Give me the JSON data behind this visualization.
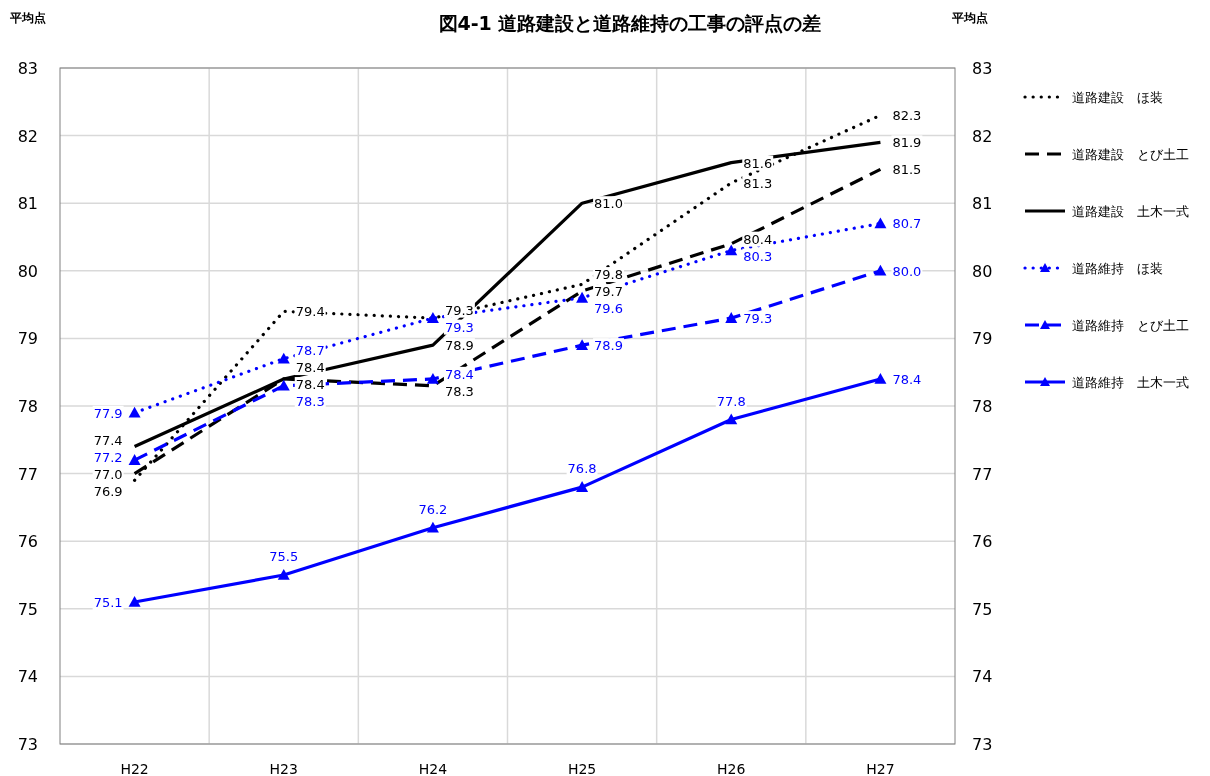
{
  "chart_data": {
    "type": "line",
    "title": "図4-1  道路建設と道路維持の工事の評点の差",
    "ylabel": "平均点",
    "y2label": "平均点",
    "categories": [
      "H22",
      "H23",
      "H24",
      "H25",
      "H26",
      "H27"
    ],
    "ylim": [
      73,
      83
    ],
    "yticks": [
      73,
      74,
      75,
      76,
      77,
      78,
      79,
      80,
      81,
      82,
      83
    ],
    "y2lim": [
      73,
      83
    ],
    "y2ticks": [
      73,
      74,
      75,
      76,
      77,
      78,
      79,
      80,
      81,
      82,
      83
    ],
    "grid": true,
    "legend": "right",
    "data_labels": true,
    "series": [
      {
        "name": "道路建設　ほ装",
        "color": "#000000",
        "line_style": "dotted",
        "marker": "none",
        "values": [
          76.9,
          79.4,
          79.3,
          79.8,
          81.3,
          82.3
        ],
        "value_labels": [
          "76.9",
          "79.4",
          "79.3",
          "79.8",
          "81.3",
          "82.3"
        ]
      },
      {
        "name": "道路建設　とび土工",
        "color": "#000000",
        "line_style": "dashed",
        "marker": "none",
        "values": [
          77.0,
          78.4,
          78.3,
          79.7,
          80.4,
          81.5
        ],
        "value_labels": [
          "77.0",
          "78.4",
          "78.3",
          "79.7",
          "80.4",
          "81.5"
        ]
      },
      {
        "name": "道路建設　土木一式",
        "color": "#000000",
        "line_style": "solid",
        "marker": "none",
        "values": [
          77.4,
          78.4,
          78.9,
          81.0,
          81.6,
          81.9
        ],
        "value_labels": [
          "77.4",
          "78.4",
          "78.9",
          "81.0",
          "81.6",
          "81.9"
        ]
      },
      {
        "name": "道路維持　ほ装",
        "color": "#0000ff",
        "line_style": "dotted",
        "marker": "triangle",
        "values": [
          77.9,
          78.7,
          79.3,
          79.6,
          80.3,
          80.7
        ],
        "value_labels": [
          "77.9",
          "78.7",
          "79.3",
          "79.6",
          "80.3",
          "80.7"
        ]
      },
      {
        "name": "道路維持　とび土工",
        "color": "#0000ff",
        "line_style": "dashed",
        "marker": "triangle",
        "values": [
          77.2,
          78.3,
          78.4,
          78.9,
          79.3,
          80.0
        ],
        "value_labels": [
          "77.2",
          "78.3",
          "78.4",
          "78.9",
          "79.3",
          "80.0"
        ]
      },
      {
        "name": "道路維持　土木一式",
        "color": "#0000ff",
        "line_style": "solid",
        "marker": "triangle",
        "values": [
          75.1,
          75.5,
          76.2,
          76.8,
          77.8,
          78.4
        ],
        "value_labels": [
          "75.1",
          "75.5",
          "76.2",
          "76.8",
          "77.8",
          "78.4"
        ]
      }
    ]
  }
}
